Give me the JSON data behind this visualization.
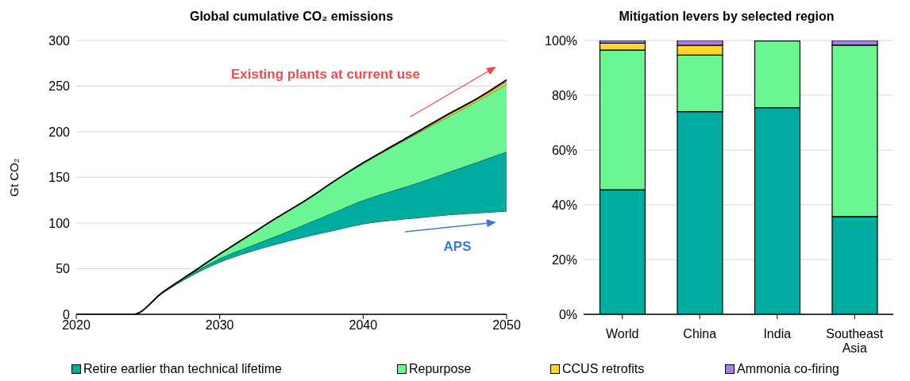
{
  "chart_data": [
    {
      "type": "area",
      "stacked": true,
      "title": "Global cumulative CO₂ emissions",
      "ylabel": "Gt CO₂",
      "x": [
        2020,
        2022,
        2024,
        2026,
        2028,
        2030,
        2032,
        2034,
        2036,
        2038,
        2040,
        2042,
        2044,
        2046,
        2048,
        2050
      ],
      "series": [
        {
          "color": "#ffffff",
          "values": [
            0,
            0,
            0,
            23,
            42,
            57,
            68,
            77,
            85,
            92,
            99,
            103,
            106,
            109,
            111,
            113
          ]
        },
        {
          "color": "#00ac9f",
          "values": [
            0,
            0,
            0,
            0,
            2,
            4,
            6,
            9,
            14,
            20,
            26,
            32,
            39,
            47,
            56,
            65
          ]
        },
        {
          "color": "#6bf593",
          "values": [
            0,
            0,
            0,
            1,
            1,
            5,
            12,
            20,
            26,
            34,
            40,
            48,
            55,
            61,
            67,
            74
          ]
        },
        {
          "color": "#fdd629",
          "values": [
            0,
            0,
            0,
            0,
            0,
            0,
            0,
            0,
            0,
            0,
            1,
            1,
            1,
            2,
            2,
            3
          ]
        },
        {
          "color": "#a77de8",
          "values": [
            0,
            0,
            0,
            0,
            0,
            0,
            0,
            0,
            0,
            0,
            0,
            0,
            1,
            1,
            1,
            2
          ]
        }
      ],
      "xlim": [
        2020,
        2050
      ],
      "xticks": [
        2020,
        2030,
        2040,
        2050
      ],
      "ylim": [
        0,
        300
      ],
      "yticks": [
        0,
        50,
        100,
        150,
        200,
        250,
        300
      ],
      "grid": "y",
      "annotations": [
        "Existing plants at current use",
        "APS"
      ]
    },
    {
      "type": "bar",
      "stacked": true,
      "title": "Mitigation levers by selected region",
      "categories": [
        "World",
        "China",
        "India",
        "Southeast Asia"
      ],
      "series": [
        {
          "name": "Retire earlier than technical lifetime",
          "color": "#00ac9f",
          "values": [
            45.5,
            74,
            75.5,
            35.7
          ]
        },
        {
          "name": "Repurpose",
          "color": "#6bf593",
          "values": [
            51,
            20.7,
            24.3,
            62.6
          ]
        },
        {
          "name": "CCUS retrofits",
          "color": "#fdd629",
          "values": [
            2.5,
            3.5,
            0,
            0
          ]
        },
        {
          "name": "Ammonia co-firing",
          "color": "#a77de8",
          "values": [
            1,
            1.8,
            null,
            1.7
          ]
        }
      ],
      "ylim": [
        0,
        100
      ],
      "yticks": [
        {
          "value": 0,
          "label": "0%"
        },
        {
          "value": 20,
          "label": "20%"
        },
        {
          "value": 40,
          "label": "40%"
        },
        {
          "value": 60,
          "label": "60%"
        },
        {
          "value": 80,
          "label": "80%"
        },
        {
          "value": 100,
          "label": "100%"
        }
      ],
      "grid": "y",
      "legend": "bottom"
    }
  ]
}
